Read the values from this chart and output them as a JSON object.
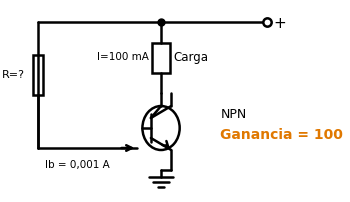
{
  "bg_color": "#ffffff",
  "line_color": "#000000",
  "text_color": "#000000",
  "ganancia_color": "#e07800",
  "fig_width": 3.5,
  "fig_height": 2.02,
  "dpi": 100,
  "labels": {
    "R": "R=?",
    "I": "I=100 mA",
    "Carga": "Carga",
    "Ib": "Ib = 0,001 A",
    "NPN": "NPN",
    "Ganancia": "Ganancia = 100"
  }
}
